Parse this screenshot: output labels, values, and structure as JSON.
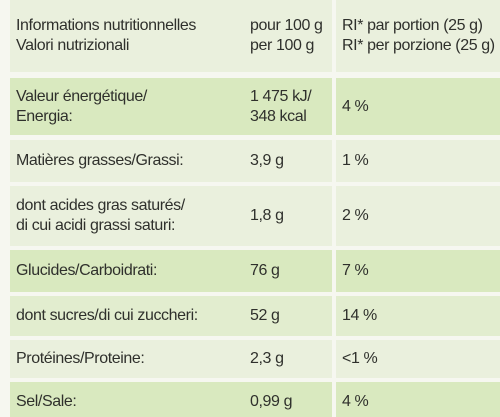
{
  "table": {
    "header": [
      [
        "Informations nutritionnelles",
        "Valori nutrizionali"
      ],
      [
        "pour 100 g",
        "per 100 g"
      ],
      [
        "RI* par portion (25 g)",
        "RI* per porzione (25 g)"
      ]
    ],
    "rows": [
      [
        [
          "Valeur énergétique/",
          "Energia:"
        ],
        [
          "1 475 kJ/",
          "348 kcal"
        ],
        [
          "4 %"
        ]
      ],
      [
        [
          "Matières grasses/Grassi:"
        ],
        [
          "3,9 g"
        ],
        [
          "1 %"
        ]
      ],
      [
        [
          "dont acides gras saturés/",
          "di cui acidi grassi saturi:"
        ],
        [
          "1,8 g"
        ],
        [
          "2 %"
        ]
      ],
      [
        [
          "Glucides/Carboidrati:"
        ],
        [
          "76 g"
        ],
        [
          "7 %"
        ]
      ],
      [
        [
          "dont sucres/di cui zuccheri:"
        ],
        [
          "52 g"
        ],
        [
          "14 %"
        ]
      ],
      [
        [
          "Protéines/Proteine:"
        ],
        [
          "2,3 g"
        ],
        [
          "<1 %"
        ]
      ],
      [
        [
          "Sel/Sale:"
        ],
        [
          "0,99 g"
        ],
        [
          "4 %"
        ]
      ]
    ]
  }
}
